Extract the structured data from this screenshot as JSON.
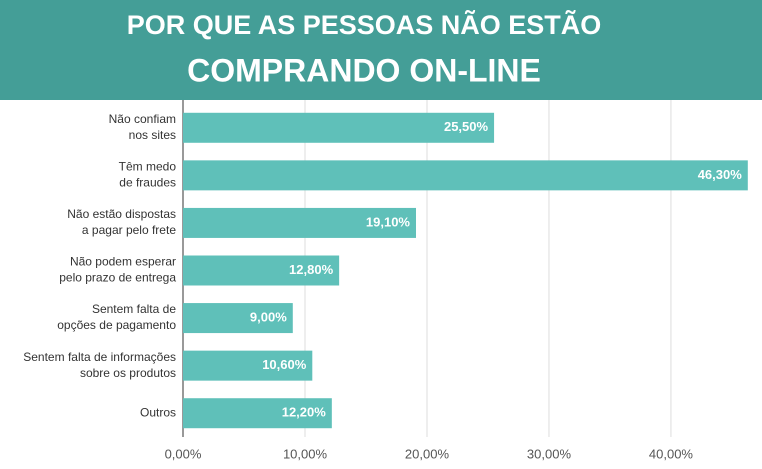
{
  "chart_data": {
    "type": "bar",
    "title": [
      "POR QUE AS PESSOAS NÃO ESTÃO",
      "COMPRANDO ON-LINE"
    ],
    "categories": [
      [
        "Não confiam",
        "nos sites"
      ],
      [
        "Têm medo",
        "de fraudes"
      ],
      [
        "Não estão dispostas",
        "a pagar pelo frete"
      ],
      [
        "Não podem esperar",
        "pelo prazo de entrega"
      ],
      [
        "Sentem falta de",
        "opções de pagamento"
      ],
      [
        "Sentem falta de informações",
        "sobre os produtos"
      ],
      [
        "Outros"
      ]
    ],
    "values": [
      25.5,
      46.3,
      19.1,
      12.8,
      9.0,
      10.6,
      12.2
    ],
    "value_labels": [
      "25,50%",
      "46,30%",
      "19,10%",
      "12,80%",
      "9,00%",
      "10,60%",
      "12,20%"
    ],
    "color": "#5fc0b9",
    "xlim": [
      0,
      47.3
    ],
    "xticks": [
      {
        "value": 0,
        "label": "0,00%"
      },
      {
        "value": 10,
        "label": "10,00%"
      },
      {
        "value": 20,
        "label": "20,00%"
      },
      {
        "value": 30,
        "label": "30,00%"
      },
      {
        "value": 40,
        "label": "40,00%"
      }
    ],
    "grid": true
  }
}
